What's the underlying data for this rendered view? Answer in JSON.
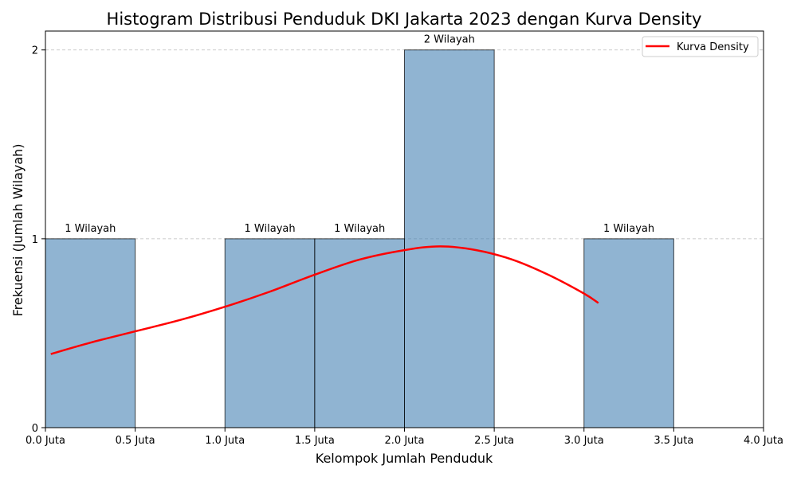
{
  "chart_data": {
    "type": "bar",
    "title": "Histogram Distribusi Penduduk DKI Jakarta 2023 dengan Kurva Density",
    "xlabel": "Kelompok Jumlah Penduduk",
    "ylabel": "Frekuensi (Jumlah Wilayah)",
    "xlim": [
      0,
      4
    ],
    "ylim": [
      0,
      2.1
    ],
    "x_ticks": [
      0,
      0.5,
      1,
      1.5,
      2,
      2.5,
      3,
      3.5,
      4
    ],
    "x_tick_labels": [
      "0.0 Juta",
      "0.5 Juta",
      "1.0 Juta",
      "1.5 Juta",
      "2.0 Juta",
      "2.5 Juta",
      "3.0 Juta",
      "3.5 Juta",
      "4.0 Juta"
    ],
    "y_ticks": [
      0,
      1,
      2
    ],
    "y_tick_labels": [
      "0",
      "1",
      "2"
    ],
    "grid": "y-dashed",
    "bins": [
      {
        "start": 0.0,
        "end": 0.5,
        "count": 1,
        "label": "1 Wilayah"
      },
      {
        "start": 1.0,
        "end": 1.5,
        "count": 1,
        "label": "1 Wilayah"
      },
      {
        "start": 1.5,
        "end": 2.0,
        "count": 1,
        "label": "1 Wilayah"
      },
      {
        "start": 2.0,
        "end": 2.5,
        "count": 2,
        "label": "2 Wilayah"
      },
      {
        "start": 3.0,
        "end": 3.5,
        "count": 1,
        "label": "1 Wilayah"
      }
    ],
    "density_curve": {
      "name": "Kurva Density",
      "color": "#ff0000",
      "x": [
        0.03,
        0.25,
        0.5,
        0.75,
        1.0,
        1.25,
        1.5,
        1.75,
        2.0,
        2.2,
        2.4,
        2.6,
        2.8,
        3.0,
        3.08
      ],
      "y": [
        0.39,
        0.45,
        0.51,
        0.57,
        0.64,
        0.72,
        0.81,
        0.89,
        0.94,
        0.96,
        0.94,
        0.89,
        0.81,
        0.71,
        0.66
      ]
    },
    "bar_color": "#4682b4",
    "legend": {
      "placement": "top-right",
      "entries": [
        "Kurva Density"
      ]
    }
  }
}
